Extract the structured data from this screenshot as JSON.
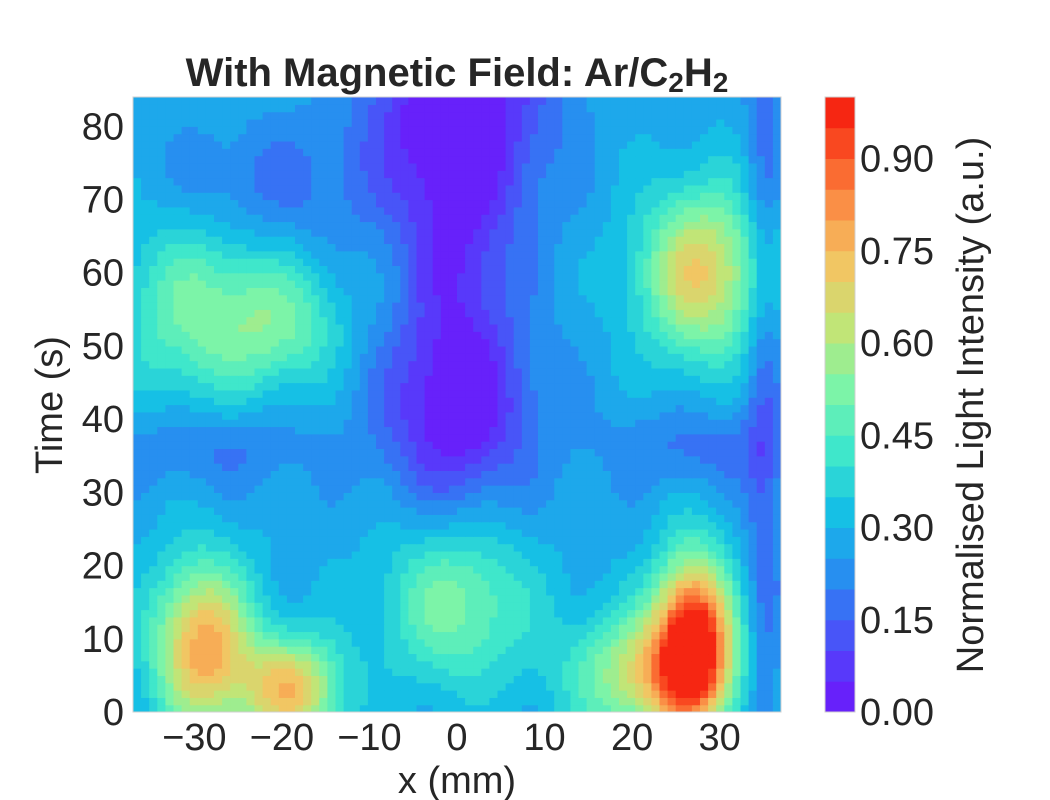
{
  "chart_data": {
    "type": "heatmap",
    "subtype": "filled-contour",
    "title": "With Magnetic Field: Ar/C₂H₂",
    "title_main": "With Magnetic Field: Ar/C",
    "title_sub1": "2",
    "title_mid": "H",
    "title_sub2": "2",
    "xlabel": "x (mm)",
    "ylabel": "Time (s)",
    "colorbar_label": "Normalised Light Intensity (a.u.)",
    "xlim": [
      -37,
      37
    ],
    "ylim": [
      0,
      84
    ],
    "clim": [
      0,
      1
    ],
    "levels": 20,
    "colormap": "rainbow (blue to red)",
    "xticks": [
      -30,
      -20,
      -10,
      0,
      10,
      20,
      30
    ],
    "xtick_labels": [
      "−30",
      "−20",
      "−10",
      "0",
      "10",
      "20",
      "30"
    ],
    "yticks": [
      0,
      10,
      20,
      30,
      40,
      50,
      60,
      70,
      80
    ],
    "ytick_labels": [
      "0",
      "10",
      "20",
      "30",
      "40",
      "50",
      "60",
      "70",
      "80"
    ],
    "cbar_ticks": [
      0.0,
      0.15,
      0.3,
      0.45,
      0.6,
      0.75,
      0.9
    ],
    "cbar_tick_labels": [
      "0.00",
      "0.15",
      "0.30",
      "0.45",
      "0.60",
      "0.75",
      "0.90"
    ],
    "base_level": 0.28,
    "features": [
      {
        "x": 27,
        "t": 10,
        "sx": 3,
        "st": 8,
        "amp": 0.72,
        "note": "peak right-bottom"
      },
      {
        "x": 22,
        "t": 5,
        "sx": 6,
        "st": 6,
        "amp": 0.38
      },
      {
        "x": -29,
        "t": 9,
        "sx": 4,
        "st": 8,
        "amp": 0.5,
        "note": "left-bottom"
      },
      {
        "x": -19,
        "t": 3,
        "sx": 4,
        "st": 5,
        "amp": 0.45
      },
      {
        "x": 0,
        "t": 15,
        "sx": 6,
        "st": 8,
        "amp": 0.25,
        "note": "central bump"
      },
      {
        "x": 28,
        "t": 60,
        "sx": 5,
        "st": 8,
        "amp": 0.42,
        "note": "right-upper"
      },
      {
        "x": -30,
        "t": 55,
        "sx": 6,
        "st": 9,
        "amp": 0.22
      },
      {
        "x": -20,
        "t": 53,
        "sx": 5,
        "st": 6,
        "amp": 0.2
      },
      {
        "x": 0,
        "t": 82,
        "sx": 7,
        "st": 12,
        "amp": -0.33,
        "note": "central minimum top"
      },
      {
        "x": 0,
        "t": 42,
        "sx": 6,
        "st": 10,
        "amp": -0.3,
        "note": "central minimum mid"
      },
      {
        "x": 0,
        "t": 62,
        "sx": 4,
        "st": 8,
        "amp": -0.12
      },
      {
        "x": -28,
        "t": 36,
        "sx": 8,
        "st": 4,
        "amp": -0.1
      },
      {
        "x": 28,
        "t": 36,
        "sx": 8,
        "st": 4,
        "amp": -0.1
      },
      {
        "x": -22,
        "t": 72,
        "sx": 8,
        "st": 6,
        "amp": -0.1
      },
      {
        "x": 35,
        "t": 42,
        "sx": 1.5,
        "st": 60,
        "amp": -0.12,
        "note": "right edge band"
      }
    ]
  }
}
